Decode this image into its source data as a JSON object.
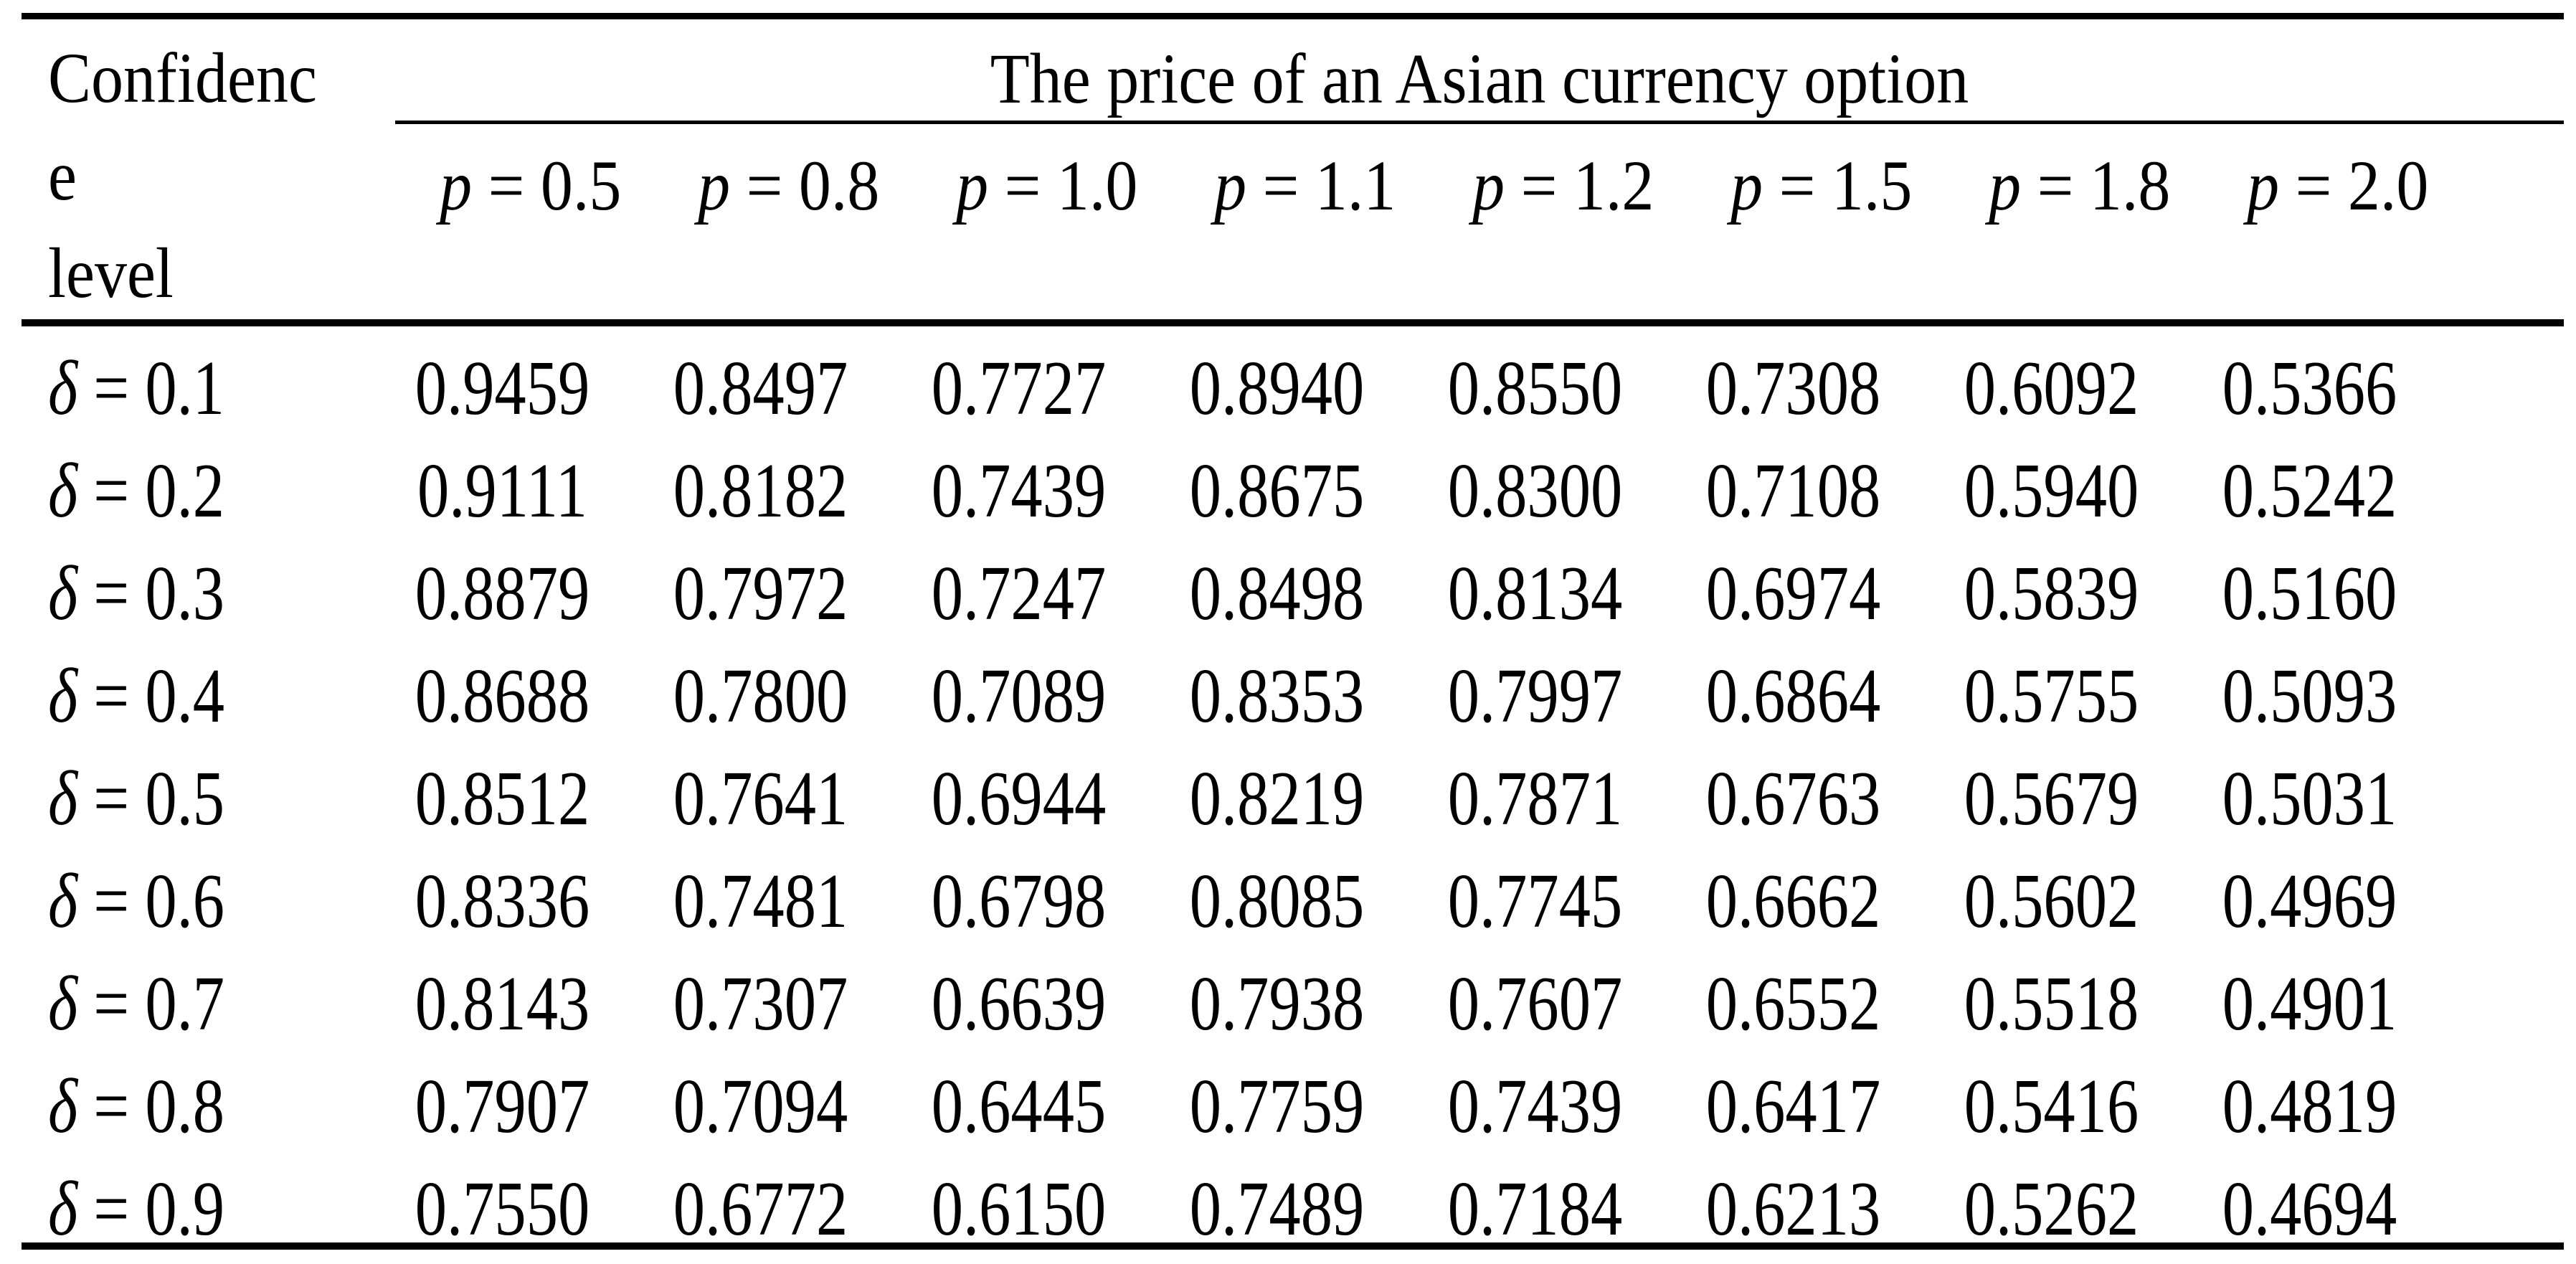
{
  "colors": {
    "text": "#000000",
    "background": "#ffffff",
    "rule": "#000000"
  },
  "table": {
    "corner_header": {
      "lines": [
        "Confidenc",
        "e",
        "level"
      ]
    },
    "spanner": {
      "title": "The price of an Asian currency option"
    },
    "columns": [
      {
        "symbol": "p",
        "rest": "= 0.5"
      },
      {
        "symbol": "p",
        "rest": "= 0.8"
      },
      {
        "symbol": "p",
        "rest": "= 1.0"
      },
      {
        "symbol": "p",
        "rest": "= 1.1"
      },
      {
        "symbol": "p",
        "rest": "= 1.2"
      },
      {
        "symbol": "p",
        "rest": "= 1.5"
      },
      {
        "symbol": "p",
        "rest": "= 1.8"
      },
      {
        "symbol": "p",
        "rest": "= 2.0"
      }
    ],
    "rows": [
      {
        "symbol": "δ",
        "rest": "= 0.1",
        "values": [
          "0.9459",
          "0.8497",
          "0.7727",
          "0.8940",
          "0.8550",
          "0.7308",
          "0.6092",
          "0.5366"
        ]
      },
      {
        "symbol": "δ",
        "rest": "= 0.2",
        "values": [
          "0.9111",
          "0.8182",
          "0.7439",
          "0.8675",
          "0.8300",
          "0.7108",
          "0.5940",
          "0.5242"
        ]
      },
      {
        "symbol": "δ",
        "rest": "= 0.3",
        "values": [
          "0.8879",
          "0.7972",
          "0.7247",
          "0.8498",
          "0.8134",
          "0.6974",
          "0.5839",
          "0.5160"
        ]
      },
      {
        "symbol": "δ",
        "rest": "= 0.4",
        "values": [
          "0.8688",
          "0.7800",
          "0.7089",
          "0.8353",
          "0.7997",
          "0.6864",
          "0.5755",
          "0.5093"
        ]
      },
      {
        "symbol": "δ",
        "rest": "= 0.5",
        "values": [
          "0.8512",
          "0.7641",
          "0.6944",
          "0.8219",
          "0.7871",
          "0.6763",
          "0.5679",
          "0.5031"
        ]
      },
      {
        "symbol": "δ",
        "rest": "= 0.6",
        "values": [
          "0.8336",
          "0.7481",
          "0.6798",
          "0.8085",
          "0.7745",
          "0.6662",
          "0.5602",
          "0.4969"
        ]
      },
      {
        "symbol": "δ",
        "rest": "= 0.7",
        "values": [
          "0.8143",
          "0.7307",
          "0.6639",
          "0.7938",
          "0.7607",
          "0.6552",
          "0.5518",
          "0.4901"
        ]
      },
      {
        "symbol": "δ",
        "rest": "= 0.8",
        "values": [
          "0.7907",
          "0.7094",
          "0.6445",
          "0.7759",
          "0.7439",
          "0.6417",
          "0.5416",
          "0.4819"
        ]
      },
      {
        "symbol": "δ",
        "rest": "= 0.9",
        "values": [
          "0.7550",
          "0.6772",
          "0.6150",
          "0.7489",
          "0.7184",
          "0.6213",
          "0.5262",
          "0.4694"
        ]
      }
    ]
  }
}
